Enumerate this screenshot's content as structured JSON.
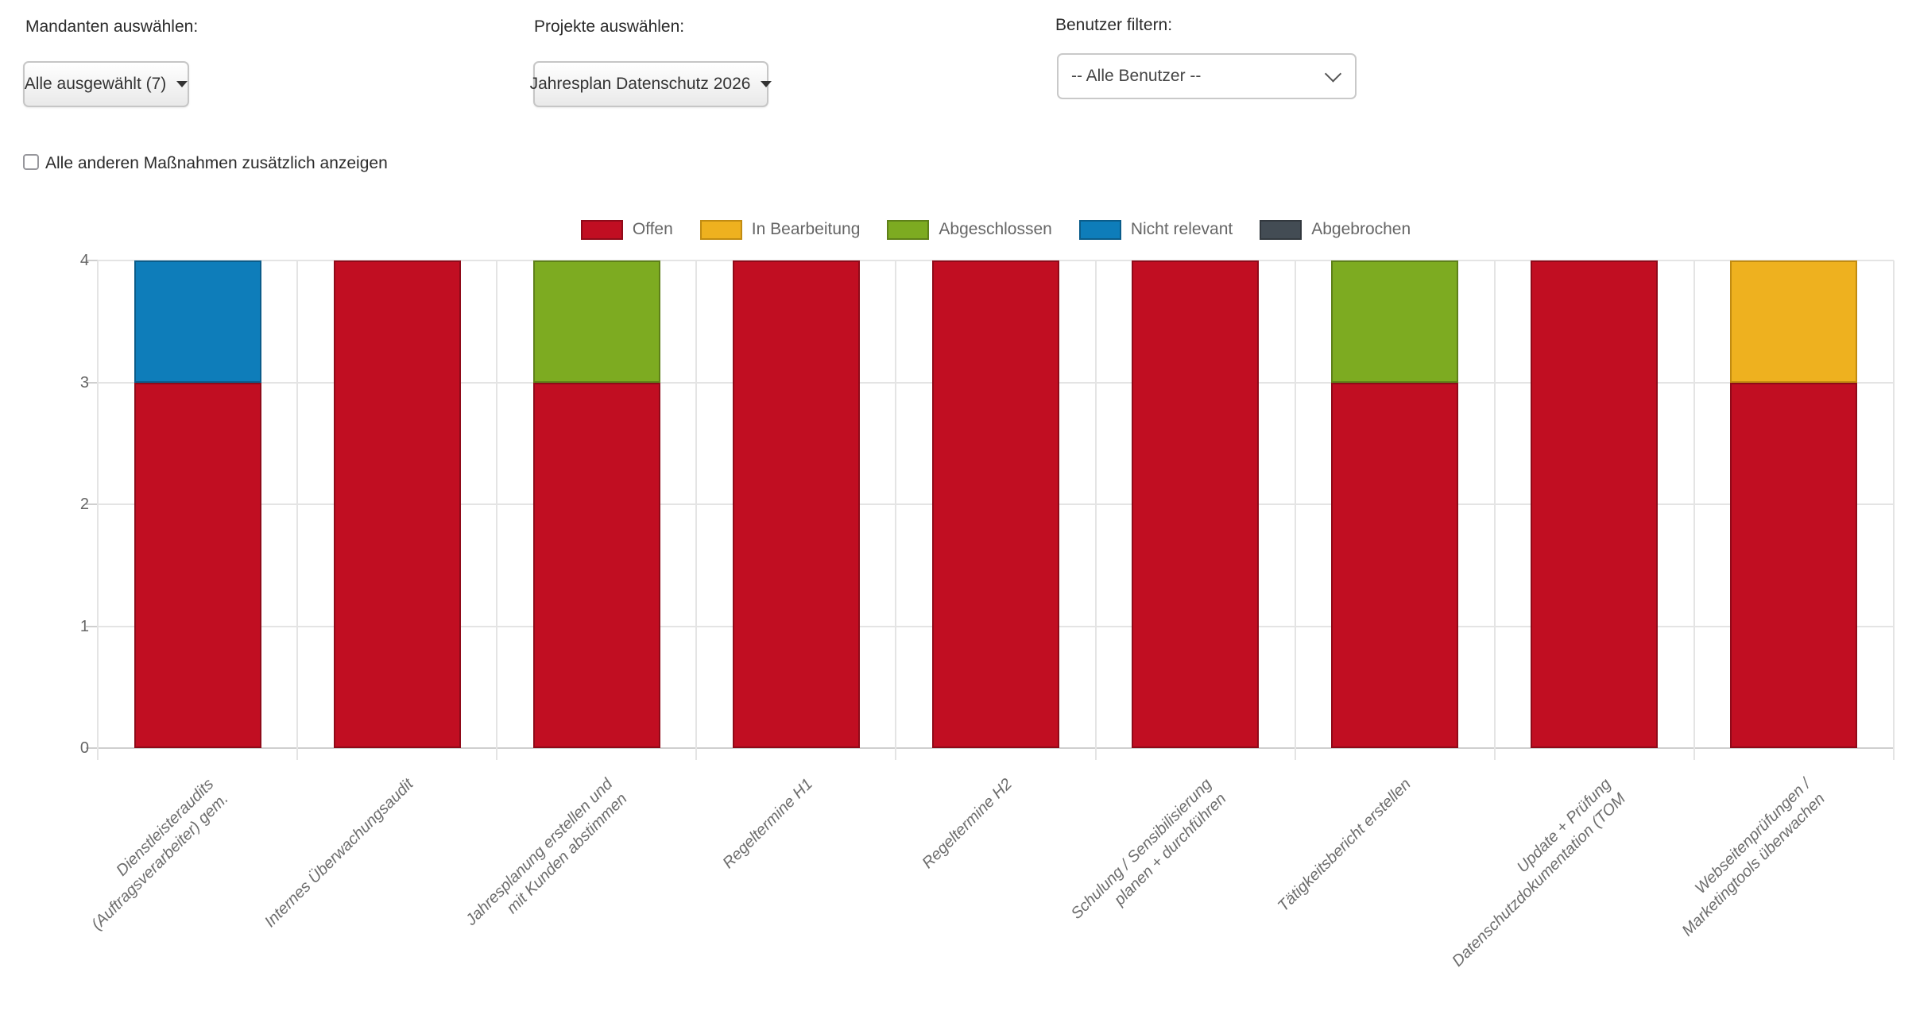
{
  "filters": {
    "mandanten": {
      "label": "Mandanten auswählen:",
      "value": "Alle ausgewählt (7)"
    },
    "projekte": {
      "label": "Projekte auswählen:",
      "value": "Jahresplan Datenschutz 2026"
    },
    "benutzer": {
      "label": "Benutzer filtern:",
      "value": "-- Alle Benutzer --"
    }
  },
  "checkbox": {
    "label": "Alle anderen Maßnahmen zusätzlich anzeigen",
    "checked": false
  },
  "chart_data": {
    "type": "bar",
    "stacked": true,
    "title": "",
    "xlabel": "",
    "ylabel": "",
    "categories": [
      "Dienstleisteraudits\n(Auftragsverarbeiter) gem.",
      "Internes Überwachungsaudit",
      "Jahresplanung erstellen und\nmit Kunden abstimmen",
      "Regeltermine H1",
      "Regeltermine H2",
      "Schulung / Sensibilisierung\nplanen + durchführen",
      "Tätigkeitsbericht erstellen",
      "Update + Prüfung\nDatenschutzdokumentation (TOM",
      "Webseitenprüfungen /\nMarketingtools überwachen"
    ],
    "series": [
      {
        "name": "Offen",
        "color": "#c10e22",
        "border_color": "#8f0a19",
        "values": [
          3,
          4,
          3,
          4,
          4,
          4,
          3,
          4,
          3
        ]
      },
      {
        "name": "In Bearbeitung",
        "color": "#eeb11f",
        "border_color": "#c18b11",
        "values": [
          0,
          0,
          0,
          0,
          0,
          0,
          0,
          0,
          1
        ]
      },
      {
        "name": "Abgeschlossen",
        "color": "#7dab21",
        "border_color": "#5e8019",
        "values": [
          0,
          0,
          1,
          0,
          0,
          0,
          1,
          0,
          0
        ]
      },
      {
        "name": "Nicht relevant",
        "color": "#0e7dba",
        "border_color": "#0a5c8a",
        "values": [
          1,
          0,
          0,
          0,
          0,
          0,
          0,
          0,
          0
        ]
      },
      {
        "name": "Abgebrochen",
        "color": "#434c54",
        "border_color": "#32383e",
        "values": [
          0,
          0,
          0,
          0,
          0,
          0,
          0,
          0,
          0
        ]
      }
    ],
    "ylim": [
      0,
      4
    ],
    "yticks": [
      "0",
      "1",
      "2",
      "3",
      "4"
    ],
    "legend_position": "top",
    "grid": true,
    "grid_color": "#e4e4e4",
    "axis_text_color": "#666666",
    "category_text_color": "#6d6d6d"
  }
}
